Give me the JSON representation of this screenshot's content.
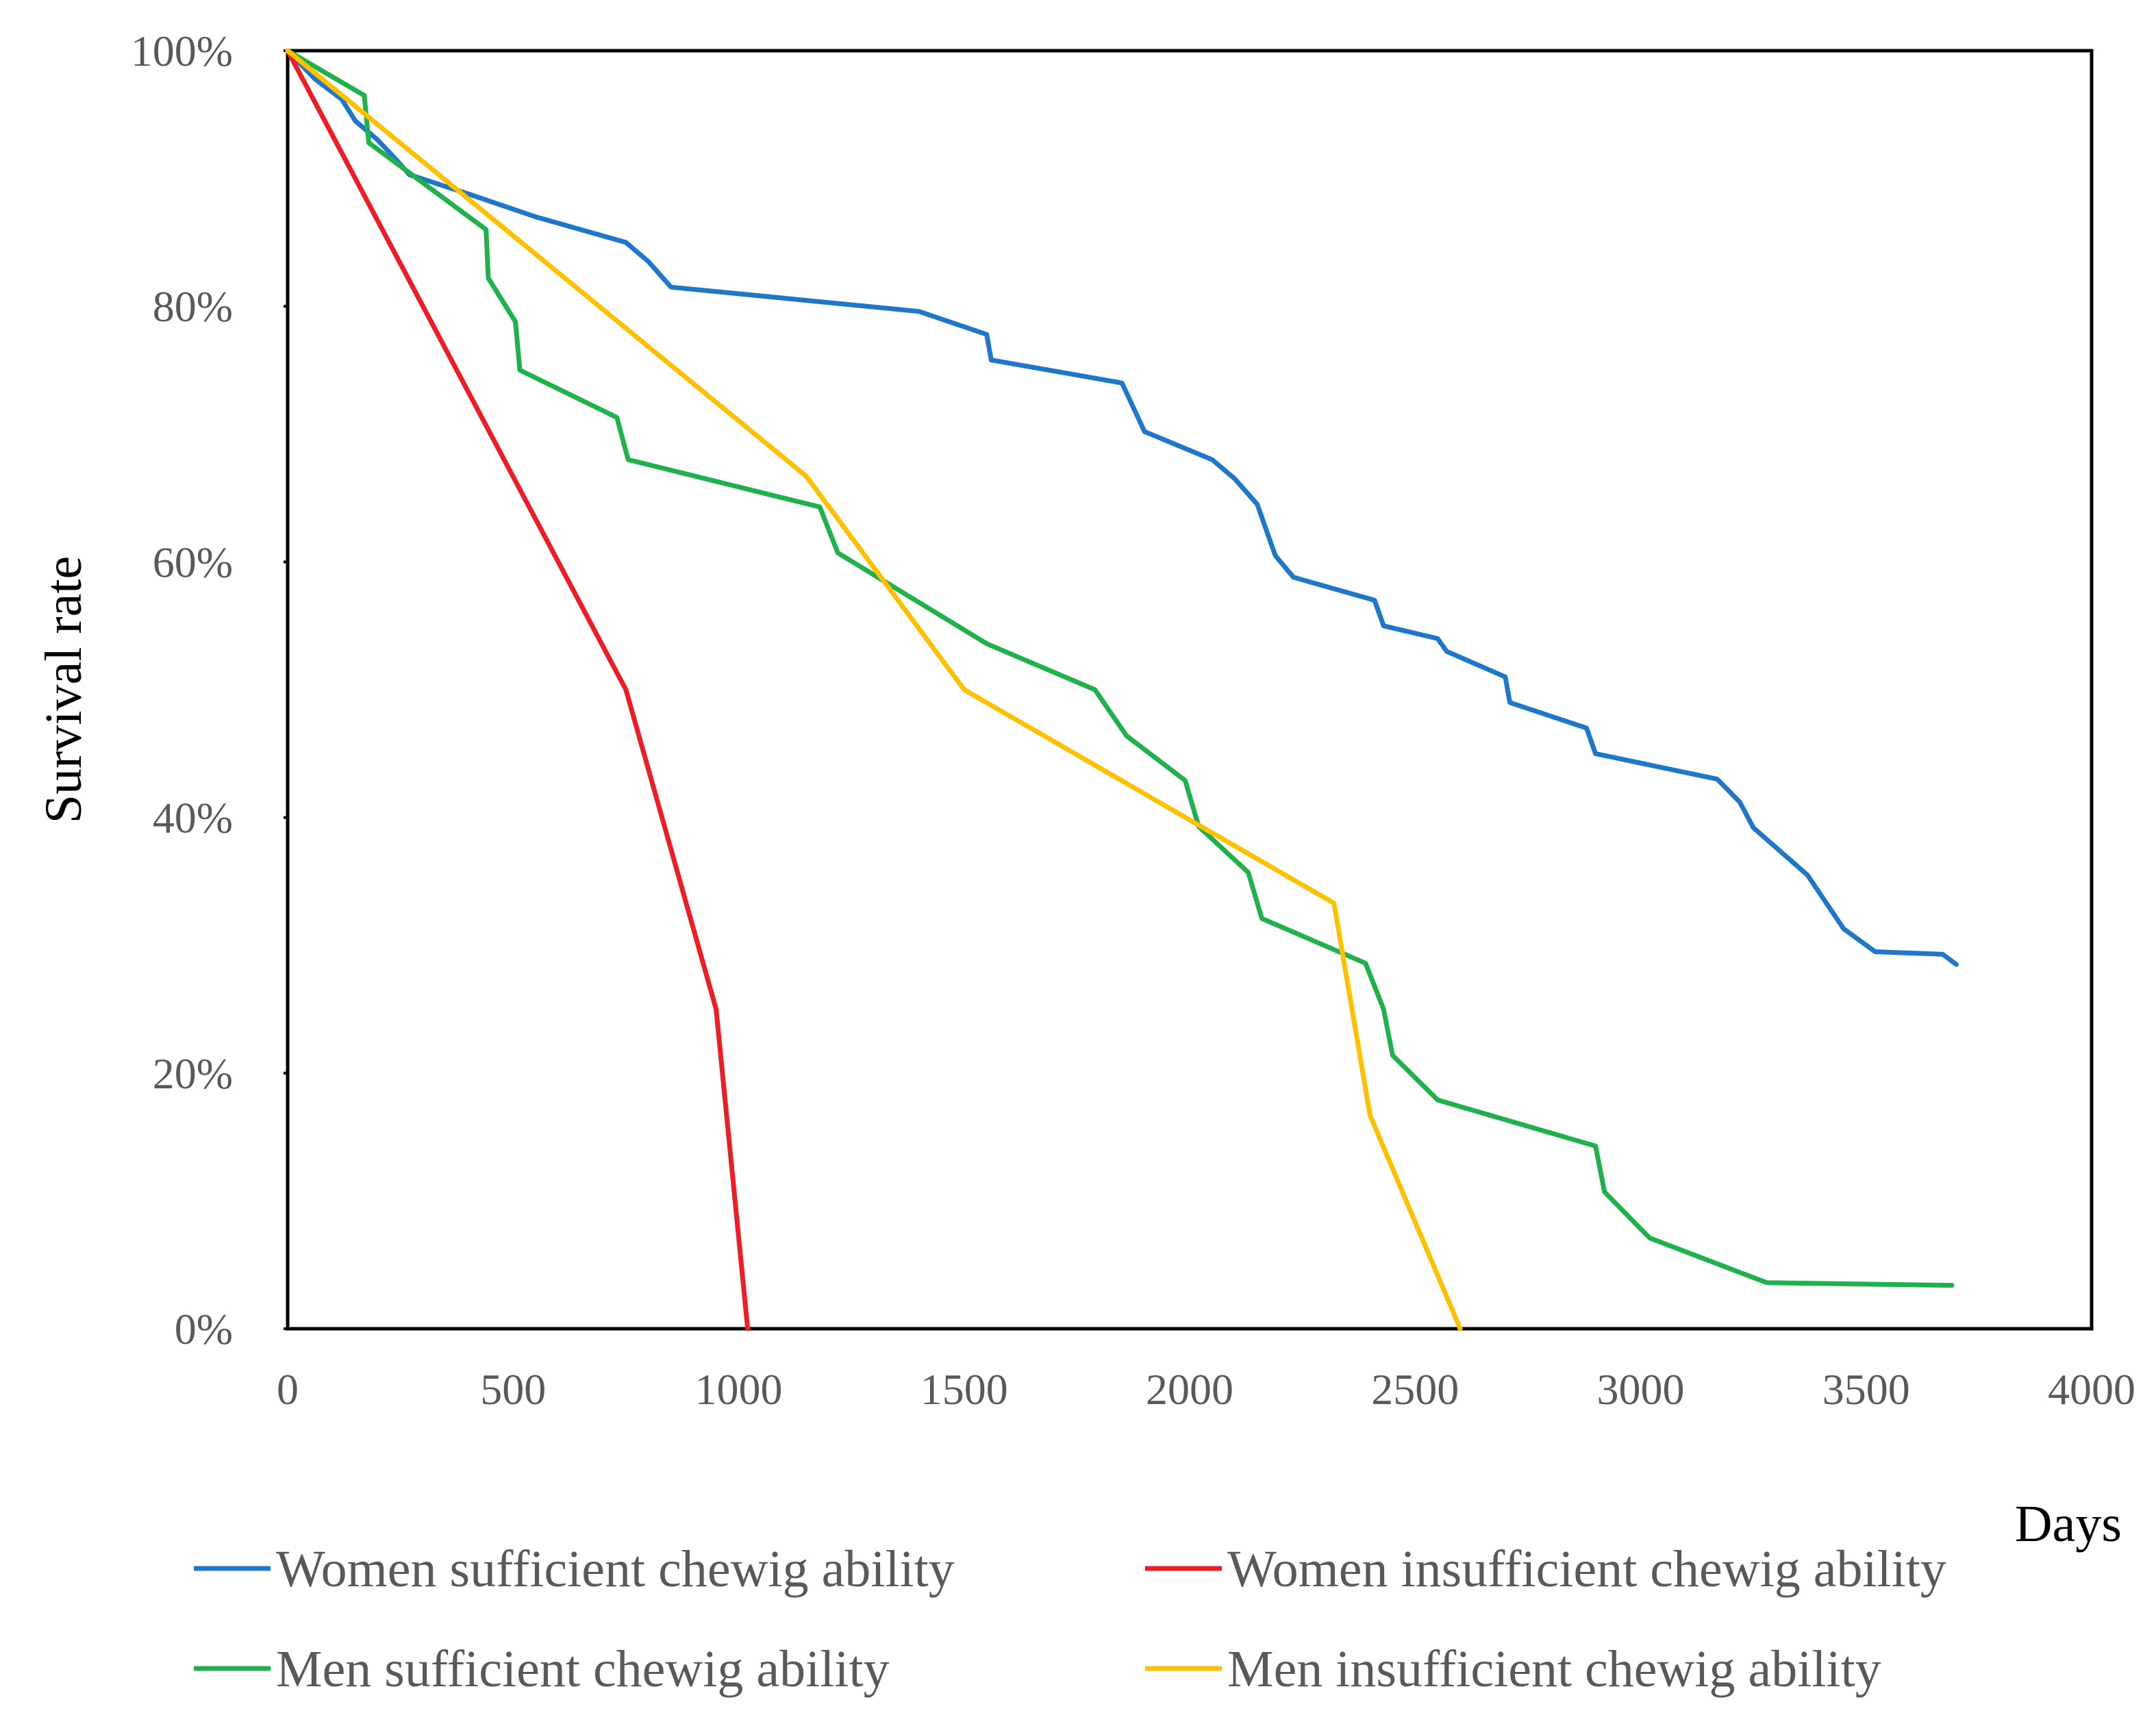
{
  "chart_data": {
    "type": "line",
    "title": "",
    "xlabel": "Days",
    "ylabel": "Survival  rate",
    "xlim": [
      0,
      4000
    ],
    "ylim": [
      0,
      100
    ],
    "x_ticks": [
      {
        "value": 0,
        "label": "0"
      },
      {
        "value": 500,
        "label": "500"
      },
      {
        "value": 1000,
        "label": "1000"
      },
      {
        "value": 1500,
        "label": "1500"
      },
      {
        "value": 2000,
        "label": "2000"
      },
      {
        "value": 2500,
        "label": "2500"
      },
      {
        "value": 3000,
        "label": "3000"
      },
      {
        "value": 3500,
        "label": "3500"
      },
      {
        "value": 4000,
        "label": "4000"
      }
    ],
    "y_ticks": [
      {
        "value": 0,
        "label": "0%"
      },
      {
        "value": 20,
        "label": "20%"
      },
      {
        "value": 40,
        "label": "40%"
      },
      {
        "value": 60,
        "label": "60%"
      },
      {
        "value": 80,
        "label": "80%"
      },
      {
        "value": 100,
        "label": "100%"
      }
    ],
    "grid": false,
    "legend_position": "bottom",
    "series": [
      {
        "name": "Women sufficient chewig ability",
        "color": "#1F77C9",
        "points": [
          [
            0,
            100
          ],
          [
            60,
            97.8
          ],
          [
            120,
            96.2
          ],
          [
            150,
            94.5
          ],
          [
            200,
            93
          ],
          [
            240,
            91.5
          ],
          [
            270,
            90.3
          ],
          [
            400,
            88.8
          ],
          [
            550,
            87
          ],
          [
            750,
            85
          ],
          [
            800,
            83.5
          ],
          [
            850,
            81.5
          ],
          [
            1400,
            79.6
          ],
          [
            1550,
            77.8
          ],
          [
            1560,
            75.8
          ],
          [
            1850,
            74
          ],
          [
            1900,
            70.2
          ],
          [
            2050,
            68
          ],
          [
            2100,
            66.5
          ],
          [
            2150,
            64.5
          ],
          [
            2170,
            62.5
          ],
          [
            2190,
            60.5
          ],
          [
            2230,
            58.8
          ],
          [
            2410,
            57
          ],
          [
            2430,
            55
          ],
          [
            2550,
            54
          ],
          [
            2570,
            53
          ],
          [
            2700,
            51
          ],
          [
            2710,
            49
          ],
          [
            2880,
            47
          ],
          [
            2900,
            45
          ],
          [
            3170,
            43
          ],
          [
            3220,
            41.2
          ],
          [
            3250,
            39.2
          ],
          [
            3370,
            35.5
          ],
          [
            3450,
            31.3
          ],
          [
            3520,
            29.5
          ],
          [
            3670,
            29.3
          ],
          [
            3700,
            28.5
          ]
        ]
      },
      {
        "name": "Women insufficient chewig ability",
        "color": "#EE1C25",
        "points": [
          [
            0,
            100
          ],
          [
            750,
            50
          ],
          [
            950,
            25
          ],
          [
            1020,
            0
          ]
        ]
      },
      {
        "name": "Men sufficient chewig ability",
        "color": "#1FB24B",
        "points": [
          [
            0,
            100
          ],
          [
            170,
            96.5
          ],
          [
            180,
            92.8
          ],
          [
            440,
            86
          ],
          [
            445,
            82.2
          ],
          [
            505,
            78.8
          ],
          [
            515,
            75
          ],
          [
            730,
            71.3
          ],
          [
            755,
            68
          ],
          [
            1180,
            64.3
          ],
          [
            1220,
            60.7
          ],
          [
            1550,
            53.6
          ],
          [
            1790,
            50
          ],
          [
            1860,
            46.4
          ],
          [
            1990,
            42.9
          ],
          [
            2020,
            39.3
          ],
          [
            2130,
            35.7
          ],
          [
            2160,
            32.1
          ],
          [
            2390,
            28.6
          ],
          [
            2430,
            25
          ],
          [
            2450,
            21.4
          ],
          [
            2550,
            17.9
          ],
          [
            2900,
            14.3
          ],
          [
            2920,
            10.7
          ],
          [
            3020,
            7.1
          ],
          [
            3280,
            3.6
          ],
          [
            3690,
            3.4
          ]
        ]
      },
      {
        "name": "Men insufficient chewig ability",
        "color": "#FFC000",
        "points": [
          [
            0,
            100
          ],
          [
            1150,
            66.7
          ],
          [
            1500,
            50
          ],
          [
            2320,
            33.3
          ],
          [
            2400,
            16.7
          ],
          [
            2600,
            0
          ]
        ]
      }
    ]
  }
}
